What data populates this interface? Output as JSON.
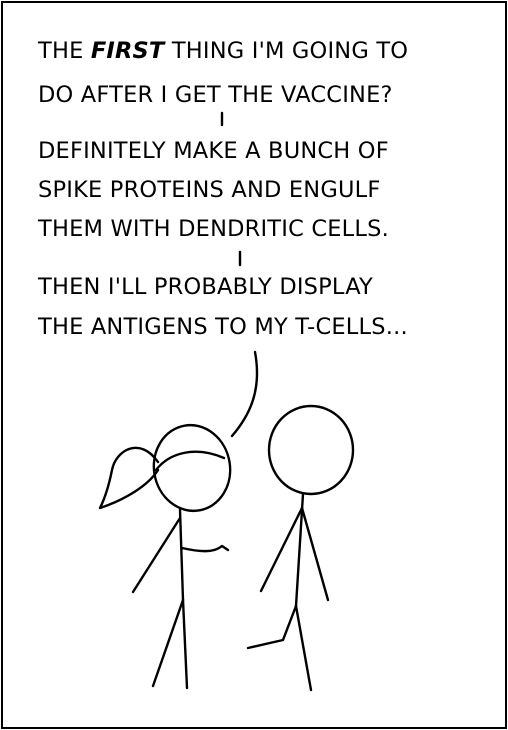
{
  "dialogue": {
    "speech1": {
      "line1_before": "THE ",
      "line1_emphasis": "FIRST",
      "line1_after": " THING I'M GOING TO",
      "line2": "DO AFTER I GET THE VACCINE?"
    },
    "speech2": {
      "line1": "DEFINITELY MAKE A BUNCH OF",
      "line2": "SPIKE PROTEINS AND ENGULF",
      "line3": "THEM WITH DENDRITIC CELLS."
    },
    "speech3": {
      "line1": "THEN I'LL PROBABLY DISPLAY",
      "line2": "THE ANTIGENS TO MY T-CELLS..."
    }
  }
}
